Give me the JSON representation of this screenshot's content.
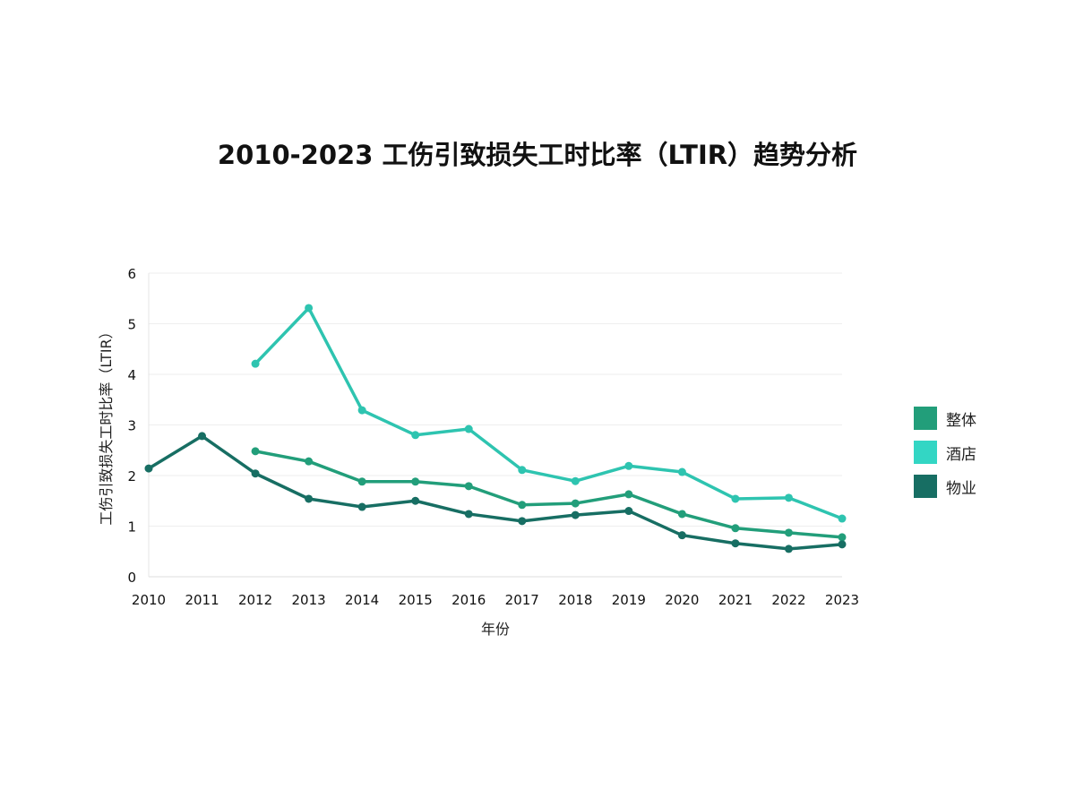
{
  "chart_data": {
    "type": "line",
    "title": "2010-2023 工伤引致损失工时比率（LTIR）趋势分析",
    "xlabel": "年份",
    "ylabel": "工伤引致损失工时比率（LTIR）",
    "x": [
      "2010",
      "2011",
      "2012",
      "2013",
      "2014",
      "2015",
      "2016",
      "2017",
      "2018",
      "2019",
      "2020",
      "2021",
      "2022",
      "2023"
    ],
    "ylim": [
      0,
      6
    ],
    "yticks": [
      "0",
      "1",
      "2",
      "3",
      "4",
      "5",
      "6"
    ],
    "grid": true,
    "legend_position": "right",
    "series": [
      {
        "name": "整体",
        "color": "#229e7a",
        "values": [
          null,
          null,
          2.48,
          2.28,
          1.88,
          1.88,
          1.79,
          1.42,
          1.45,
          1.63,
          1.24,
          0.96,
          0.87,
          0.78
        ]
      },
      {
        "name": "酒店",
        "color": "#2ec4b0",
        "values": [
          null,
          null,
          4.21,
          5.31,
          3.29,
          2.8,
          2.92,
          2.11,
          1.89,
          2.19,
          2.07,
          1.54,
          1.56,
          1.15
        ]
      },
      {
        "name": "物业",
        "color": "#176e63",
        "values": [
          2.14,
          2.78,
          2.04,
          1.54,
          1.38,
          1.5,
          1.24,
          1.1,
          1.22,
          1.3,
          0.82,
          0.66,
          0.55,
          0.64
        ]
      }
    ]
  }
}
